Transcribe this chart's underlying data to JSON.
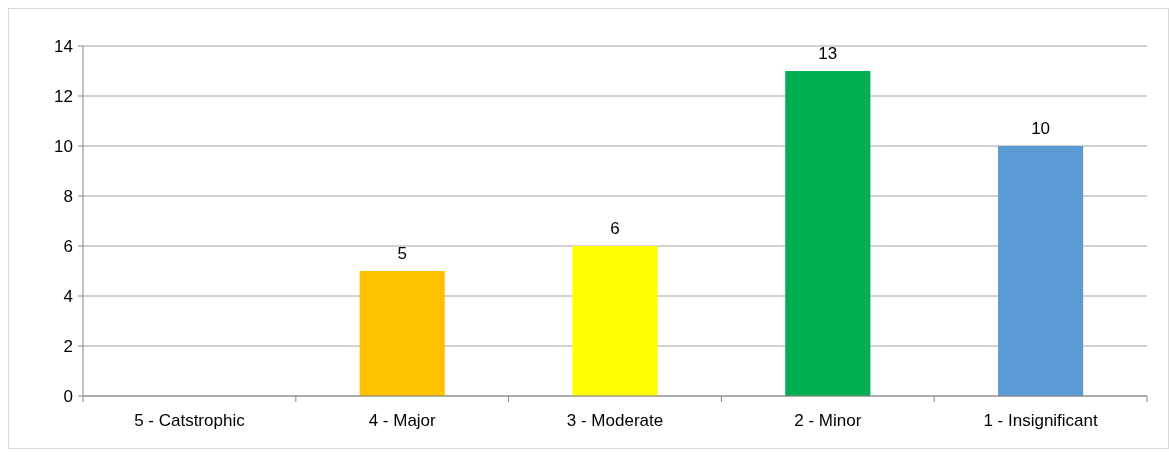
{
  "chart_data": {
    "type": "bar",
    "categories": [
      "5 - Catstrophic",
      "4 - Major",
      "3 - Moderate",
      "2 - Minor",
      "1 - Insignificant"
    ],
    "values": [
      0,
      5,
      6,
      13,
      10
    ],
    "colors": [
      "#ff0000",
      "#ffc000",
      "#ffff00",
      "#00b050",
      "#5b9bd5"
    ],
    "value_labels": [
      null,
      "5",
      "6",
      "13",
      "10"
    ],
    "ylim": [
      0,
      14
    ],
    "yticks": [
      0,
      2,
      4,
      6,
      8,
      10,
      12,
      14
    ],
    "grid": "y"
  }
}
